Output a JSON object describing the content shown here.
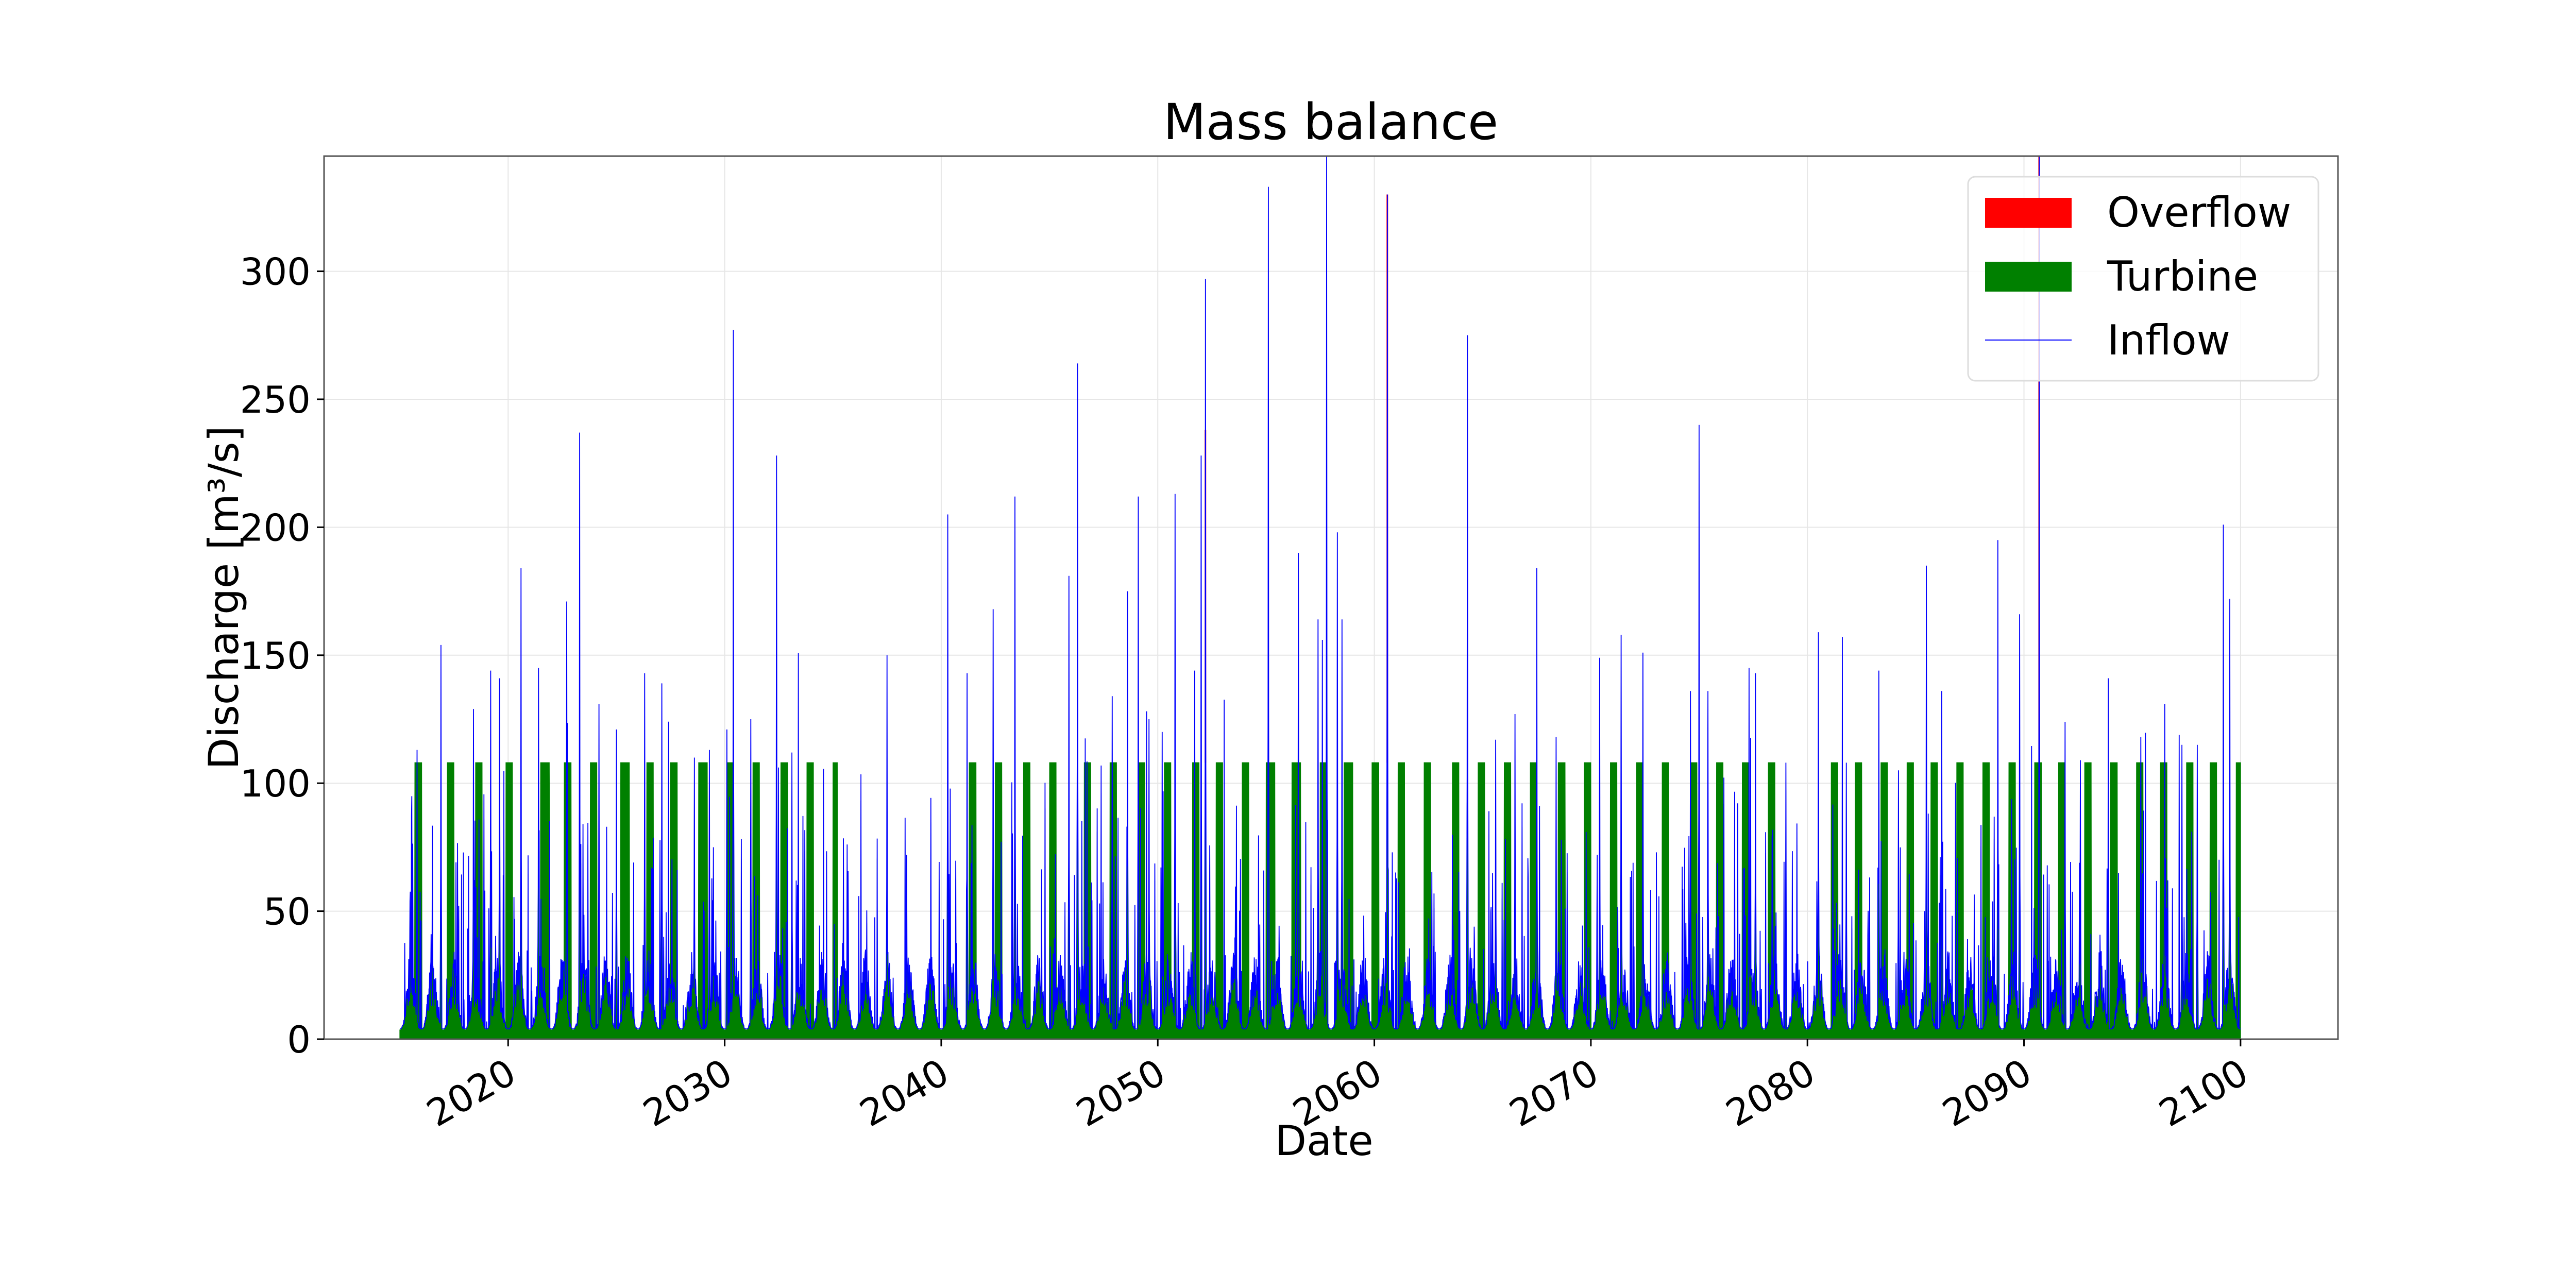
{
  "chart_data": {
    "type": "area",
    "title": "Mass balance",
    "xlabel": "Date",
    "ylabel": "Discharge [m³/s]",
    "xlim": [
      2011.5,
      2104.5
    ],
    "ylim": [
      0,
      345
    ],
    "x_ticks": [
      "2020",
      "2030",
      "2040",
      "2050",
      "2060",
      "2070",
      "2080",
      "2090",
      "2100"
    ],
    "y_ticks": [
      "0",
      "50",
      "100",
      "150",
      "200",
      "250",
      "300"
    ],
    "grid": true,
    "legend_position": "top-right",
    "series": [
      {
        "name": "Overflow",
        "color": "#ff0000",
        "kind": "filled"
      },
      {
        "name": "Turbine",
        "color": "#008000",
        "kind": "filled",
        "max_value": 108
      },
      {
        "name": "Inflow",
        "color": "#0000ff",
        "kind": "line"
      }
    ],
    "date_range": [
      "2015",
      "2100"
    ],
    "turbine_full_periods": [
      [
        2015.7,
        2016.0
      ],
      [
        2017.2,
        2017.5
      ],
      [
        2018.5,
        2018.8
      ],
      [
        2019.9,
        2020.2
      ],
      [
        2021.5,
        2021.9
      ],
      [
        2022.6,
        2022.9
      ],
      [
        2023.8,
        2024.1
      ],
      [
        2025.2,
        2025.6
      ],
      [
        2026.4,
        2026.7
      ],
      [
        2027.5,
        2027.8
      ],
      [
        2028.8,
        2029.2
      ],
      [
        2030.1,
        2030.4
      ],
      [
        2031.3,
        2031.6
      ],
      [
        2032.6,
        2032.9
      ],
      [
        2033.8,
        2034.1
      ],
      [
        2035.0,
        2035.2
      ],
      [
        2041.3,
        2041.6
      ],
      [
        2042.5,
        2042.8
      ],
      [
        2043.8,
        2044.1
      ],
      [
        2045.0,
        2045.3
      ],
      [
        2046.6,
        2046.9
      ],
      [
        2047.8,
        2048.1
      ],
      [
        2049.1,
        2049.4
      ],
      [
        2050.3,
        2050.6
      ],
      [
        2051.6,
        2051.9
      ],
      [
        2052.7,
        2053.0
      ],
      [
        2053.9,
        2054.2
      ],
      [
        2055.0,
        2055.4
      ],
      [
        2056.2,
        2056.6
      ],
      [
        2057.5,
        2057.8
      ],
      [
        2058.6,
        2059.0
      ],
      [
        2059.9,
        2060.2
      ],
      [
        2061.1,
        2061.4
      ],
      [
        2062.3,
        2062.6
      ],
      [
        2063.6,
        2063.9
      ],
      [
        2064.8,
        2065.1
      ],
      [
        2066.0,
        2066.3
      ],
      [
        2067.2,
        2067.5
      ],
      [
        2068.5,
        2068.8
      ],
      [
        2069.7,
        2070.0
      ],
      [
        2070.9,
        2071.2
      ],
      [
        2072.1,
        2072.4
      ],
      [
        2073.3,
        2073.6
      ],
      [
        2074.6,
        2074.9
      ],
      [
        2075.8,
        2076.1
      ],
      [
        2077.0,
        2077.3
      ],
      [
        2078.2,
        2078.5
      ],
      [
        2081.1,
        2081.4
      ],
      [
        2082.2,
        2082.5
      ],
      [
        2083.4,
        2083.7
      ],
      [
        2084.6,
        2084.9
      ],
      [
        2085.7,
        2086.0
      ],
      [
        2086.9,
        2087.2
      ],
      [
        2088.1,
        2088.4
      ],
      [
        2089.3,
        2089.6
      ],
      [
        2090.5,
        2090.8
      ],
      [
        2091.6,
        2091.9
      ],
      [
        2092.8,
        2093.1
      ],
      [
        2094.0,
        2094.3
      ],
      [
        2095.2,
        2095.5
      ],
      [
        2096.3,
        2096.6
      ],
      [
        2097.5,
        2097.8
      ],
      [
        2098.6,
        2098.9
      ],
      [
        2099.8,
        2100.1
      ]
    ],
    "inflow_peaks": [
      [
        2015.8,
        113
      ],
      [
        2016.9,
        154
      ],
      [
        2018.4,
        129
      ],
      [
        2019.2,
        144
      ],
      [
        2019.6,
        141
      ],
      [
        2020.6,
        184
      ],
      [
        2021.4,
        145
      ],
      [
        2022.7,
        171
      ],
      [
        2023.3,
        237
      ],
      [
        2024.2,
        131
      ],
      [
        2025.0,
        121
      ],
      [
        2026.3,
        143
      ],
      [
        2027.1,
        139
      ],
      [
        2028.6,
        110
      ],
      [
        2029.3,
        113
      ],
      [
        2030.1,
        121
      ],
      [
        2030.4,
        277
      ],
      [
        2031.2,
        125
      ],
      [
        2032.4,
        228
      ],
      [
        2033.1,
        112
      ],
      [
        2036.5,
        35
      ],
      [
        2037.5,
        150
      ],
      [
        2038.4,
        72
      ],
      [
        2040.3,
        205
      ],
      [
        2041.2,
        143
      ],
      [
        2042.4,
        168
      ],
      [
        2043.4,
        212
      ],
      [
        2045.9,
        181
      ],
      [
        2046.3,
        264
      ],
      [
        2047.9,
        134
      ],
      [
        2048.6,
        175
      ],
      [
        2049.1,
        212
      ],
      [
        2049.6,
        125
      ],
      [
        2050.2,
        120
      ],
      [
        2050.8,
        213
      ],
      [
        2051.7,
        144
      ],
      [
        2052.0,
        228
      ],
      [
        2052.2,
        297
      ],
      [
        2055.1,
        333
      ],
      [
        2056.5,
        190
      ],
      [
        2057.4,
        164
      ],
      [
        2057.6,
        156
      ],
      [
        2057.8,
        345
      ],
      [
        2058.3,
        198
      ],
      [
        2058.5,
        164
      ],
      [
        2060.6,
        330
      ],
      [
        2064.3,
        275
      ],
      [
        2065.6,
        117
      ],
      [
        2066.5,
        127
      ],
      [
        2067.5,
        184
      ],
      [
        2068.4,
        118
      ],
      [
        2070.4,
        149
      ],
      [
        2071.4,
        158
      ],
      [
        2072.4,
        151
      ],
      [
        2074.6,
        136
      ],
      [
        2075.0,
        240
      ],
      [
        2075.4,
        136
      ],
      [
        2077.3,
        145
      ],
      [
        2077.6,
        143
      ],
      [
        2079.0,
        108
      ],
      [
        2080.5,
        159
      ],
      [
        2081.8,
        108
      ],
      [
        2083.3,
        144
      ],
      [
        2084.2,
        105
      ],
      [
        2085.5,
        185
      ],
      [
        2086.2,
        136
      ],
      [
        2088.8,
        195
      ],
      [
        2089.8,
        166
      ],
      [
        2090.7,
        345
      ],
      [
        2091.9,
        124
      ],
      [
        2092.6,
        109
      ],
      [
        2093.9,
        141
      ],
      [
        2095.4,
        118
      ],
      [
        2096.5,
        131
      ],
      [
        2097.3,
        115
      ],
      [
        2098.0,
        115
      ],
      [
        2099.2,
        201
      ],
      [
        2099.5,
        172
      ],
      [
        2100.2,
        111
      ]
    ],
    "overflow_peaks": [
      [
        2052.2,
        238
      ],
      [
        2060.6,
        330
      ],
      [
        2090.7,
        345
      ]
    ]
  }
}
